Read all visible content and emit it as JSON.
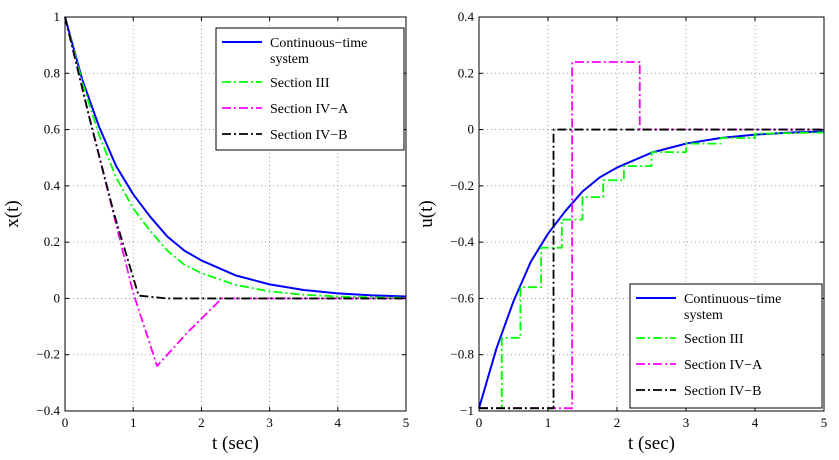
{
  "chart_data": [
    {
      "type": "line",
      "xlabel": "t (sec)",
      "ylabel": "x(t)",
      "xlim": [
        0,
        5
      ],
      "ylim": [
        -0.4,
        1
      ],
      "xticks": [
        0,
        1,
        2,
        3,
        4,
        5
      ],
      "yticks": [
        -0.4,
        -0.2,
        0,
        0.2,
        0.4,
        0.6,
        0.8,
        1
      ],
      "xtick_labels": [
        "0",
        "1",
        "2",
        "3",
        "4",
        "5"
      ],
      "ytick_labels": [
        "−0.4",
        "−0.2",
        "0",
        "0.2",
        "0.4",
        "0.6",
        "0.8",
        "1"
      ],
      "grid": true,
      "legend": "top-right",
      "series": [
        {
          "name": "Continuous−time system",
          "color": "#0000ff",
          "dash": "solid",
          "x": [
            0,
            0.25,
            0.5,
            0.75,
            1.0,
            1.25,
            1.5,
            1.75,
            2.0,
            2.5,
            3.0,
            3.5,
            4.0,
            4.5,
            5.0
          ],
          "y": [
            1,
            0.78,
            0.61,
            0.47,
            0.37,
            0.29,
            0.22,
            0.17,
            0.135,
            0.082,
            0.05,
            0.03,
            0.018,
            0.011,
            0.007
          ]
        },
        {
          "name": "Section III",
          "color": "#00ff00",
          "dash": "dashdot",
          "x": [
            0,
            0.25,
            0.5,
            0.75,
            1.0,
            1.25,
            1.5,
            1.75,
            2.0,
            2.5,
            3.0,
            3.5,
            4.0,
            4.5,
            5.0
          ],
          "y": [
            1,
            0.77,
            0.58,
            0.43,
            0.32,
            0.24,
            0.17,
            0.12,
            0.09,
            0.048,
            0.025,
            0.013,
            0.007,
            0.004,
            0.002
          ]
        },
        {
          "name": "Section IV−A",
          "color": "#ff00ff",
          "dash": "dashdot",
          "x": [
            0,
            0.33,
            0.66,
            1.0,
            1.35,
            1.8,
            2.3,
            3.0,
            4.0,
            5.0
          ],
          "y": [
            1,
            0.67,
            0.35,
            0.02,
            -0.24,
            -0.12,
            0,
            0,
            0,
            0
          ]
        },
        {
          "name": "Section IV−B",
          "color": "#000000",
          "dash": "dashdot",
          "x": [
            0,
            0.36,
            0.72,
            1.08,
            1.5,
            2.0,
            3.0,
            4.0,
            5.0
          ],
          "y": [
            1,
            0.64,
            0.3,
            0.01,
            0.0,
            0,
            0,
            0,
            0
          ]
        }
      ]
    },
    {
      "type": "line",
      "xlabel": "t (sec)",
      "ylabel": "u(t)",
      "xlim": [
        0,
        5
      ],
      "ylim": [
        -1,
        0.4
      ],
      "xticks": [
        0,
        1,
        2,
        3,
        4,
        5
      ],
      "yticks": [
        -1,
        -0.8,
        -0.6,
        -0.4,
        -0.2,
        0,
        0.2,
        0.4
      ],
      "xtick_labels": [
        "0",
        "1",
        "2",
        "3",
        "4",
        "5"
      ],
      "ytick_labels": [
        "−1",
        "−0.8",
        "−0.6",
        "−0.4",
        "−0.2",
        "0",
        "0.2",
        "0.4"
      ],
      "grid": true,
      "legend": "bottom-right",
      "series": [
        {
          "name": "Continuous−time system",
          "color": "#0000ff",
          "dash": "solid",
          "x": [
            0,
            0.25,
            0.5,
            0.75,
            1.0,
            1.25,
            1.5,
            1.75,
            2.0,
            2.5,
            3.0,
            3.5,
            4.0,
            4.5,
            5.0
          ],
          "y": [
            -0.99,
            -0.78,
            -0.61,
            -0.47,
            -0.37,
            -0.29,
            -0.22,
            -0.17,
            -0.135,
            -0.082,
            -0.05,
            -0.03,
            -0.018,
            -0.011,
            -0.007
          ]
        },
        {
          "name": "Section III",
          "color": "#00ff00",
          "dash": "dashdot",
          "x": [
            0,
            0.33,
            0.33,
            0.6,
            0.6,
            0.9,
            0.9,
            1.2,
            1.2,
            1.5,
            1.5,
            1.8,
            1.8,
            2.1,
            2.1,
            2.5,
            2.5,
            3.0,
            3.0,
            3.5,
            3.5,
            4.0,
            4.0,
            5.0
          ],
          "y": [
            -0.99,
            -0.99,
            -0.74,
            -0.74,
            -0.56,
            -0.56,
            -0.42,
            -0.42,
            -0.32,
            -0.32,
            -0.24,
            -0.24,
            -0.18,
            -0.18,
            -0.13,
            -0.13,
            -0.08,
            -0.08,
            -0.05,
            -0.05,
            -0.03,
            -0.03,
            -0.015,
            -0.01
          ]
        },
        {
          "name": "Section IV−A",
          "color": "#ff00ff",
          "dash": "dashdot",
          "x": [
            0,
            1.35,
            1.35,
            2.33,
            2.33,
            5.0
          ],
          "y": [
            -0.99,
            -0.99,
            0.24,
            0.24,
            0,
            0
          ]
        },
        {
          "name": "Section IV−B",
          "color": "#000000",
          "dash": "dashdot",
          "x": [
            0,
            1.08,
            1.08,
            5.0
          ],
          "y": [
            -0.99,
            -0.99,
            0,
            0
          ]
        }
      ]
    }
  ]
}
